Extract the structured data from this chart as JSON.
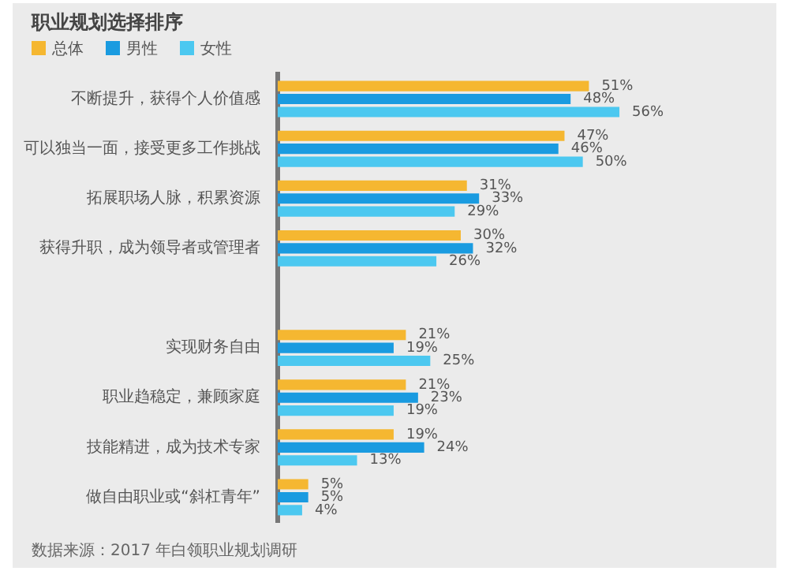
{
  "chart_data": {
    "type": "bar",
    "orientation": "horizontal",
    "title": "职业规划选择排序",
    "categories": [
      "不断提升，获得个人价值感",
      "可以独当一面，接受更多工作挑战",
      "拓展职场人脉，积累资源",
      "获得升职，成为领导者或管理者",
      null,
      "实现财务自由",
      "职业趋稳定，兼顾家庭",
      "技能精进，成为技术专家",
      "做自由职业或“斜杠青年”"
    ],
    "series": [
      {
        "name": "总体",
        "color": "#f5b731",
        "values": [
          51,
          47,
          31,
          30,
          null,
          21,
          21,
          19,
          5
        ],
        "value_labels": [
          "51%",
          "47%",
          "31%",
          "30%",
          null,
          "21%",
          "21%",
          "19%",
          "5%"
        ]
      },
      {
        "name": "男性",
        "color": "#1a9be0",
        "values": [
          48,
          46,
          33,
          32,
          null,
          19,
          23,
          24,
          5
        ],
        "value_labels": [
          "48%",
          "46%",
          "33%",
          "32%",
          null,
          "19%",
          "23%",
          "24%",
          "5%"
        ]
      },
      {
        "name": "女性",
        "color": "#4cc8f0",
        "values": [
          56,
          50,
          29,
          26,
          null,
          25,
          19,
          13,
          4
        ],
        "value_labels": [
          "56%",
          "50%",
          "29%",
          "26%",
          null,
          "25%",
          "19%",
          "13%",
          "4%"
        ]
      }
    ],
    "legend": "top left",
    "annotations": [
      "数据来源：2017 年白领职业规划调研"
    ]
  }
}
